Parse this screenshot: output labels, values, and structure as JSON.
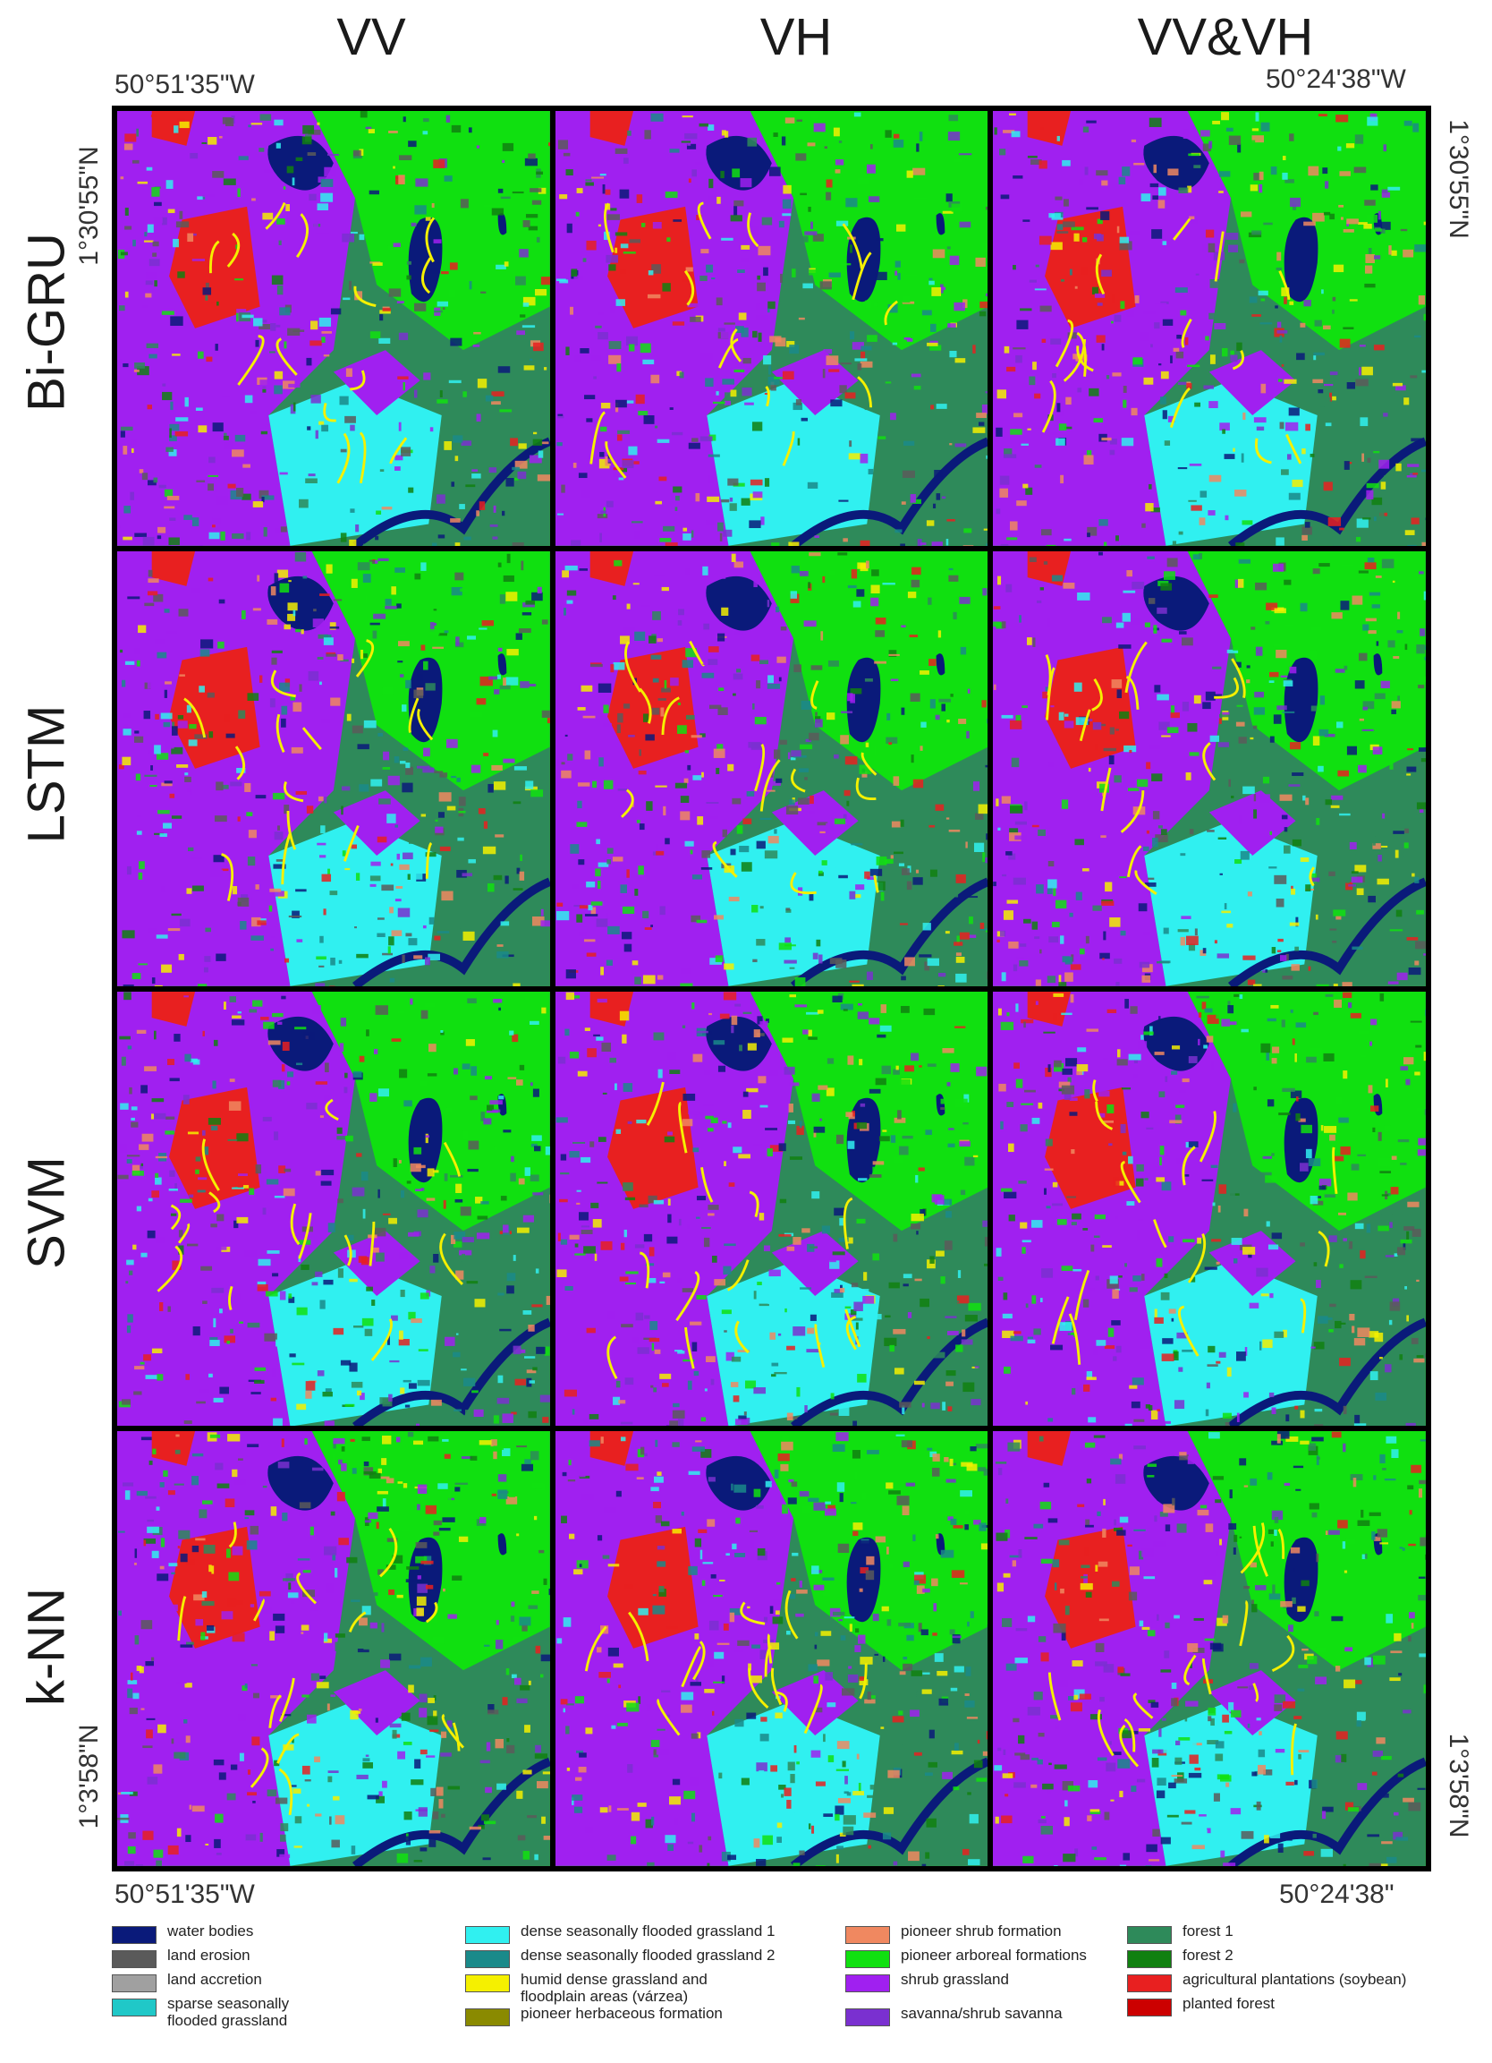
{
  "columns": [
    "VV",
    "VH",
    "VV&VH"
  ],
  "rows": [
    "Bi-GRU",
    "LSTM",
    "SVM",
    "k-NN"
  ],
  "coordinates": {
    "top_left_lon": "50°51'35\"W",
    "top_right_lon": "50°24'38\"W",
    "bottom_left_lon": "50°51'35\"W",
    "bottom_right_lon": "50°24'38\"",
    "left_top_lat": "1°30'55\"N",
    "right_top_lat": "1°30'55\"N",
    "left_bottom_lat": "1°3'58\"N",
    "right_bottom_lat": "1°3'58\"N"
  },
  "legend": {
    "col1": [
      {
        "label": "water bodies",
        "color": "#0a1a7a"
      },
      {
        "label": "land erosion",
        "color": "#5a5a5a"
      },
      {
        "label": "land accretion",
        "color": "#a0a0a0"
      },
      {
        "label": "sparse seasonally flooded grassland",
        "line1": "sparse seasonally",
        "line2": "flooded grassland",
        "color": "#20c8c8"
      }
    ],
    "col2": [
      {
        "label": "dense seasonally flooded grassland 1",
        "color": "#30f0f0"
      },
      {
        "label": "dense seasonally flooded grassland 2",
        "color": "#1a8a8a"
      },
      {
        "label": "humid dense grassland and floodplain areas (várzea)",
        "line1": "humid dense grassland and",
        "line2": "floodplain areas (várzea)",
        "color": "#f5f000"
      },
      {
        "label": "pioneer herbaceous formation",
        "color": "#8a8a00"
      }
    ],
    "col3": [
      {
        "label": "pioneer shrub formation",
        "color": "#f08860"
      },
      {
        "label": "pioneer arboreal formations",
        "color": "#10e010"
      },
      {
        "label": "shrub grassland",
        "color": "#a020f0"
      },
      {
        "label": "savanna/shrub savanna",
        "color": "#7a30d0"
      }
    ],
    "col4": [
      {
        "label": "forest 1",
        "color": "#2e8a5a"
      },
      {
        "label": "forest 2",
        "color": "#108010"
      },
      {
        "label": "agricultural plantations (soybean)",
        "color": "#e82020"
      },
      {
        "label": "planted forest",
        "color": "#cc0000"
      }
    ]
  }
}
